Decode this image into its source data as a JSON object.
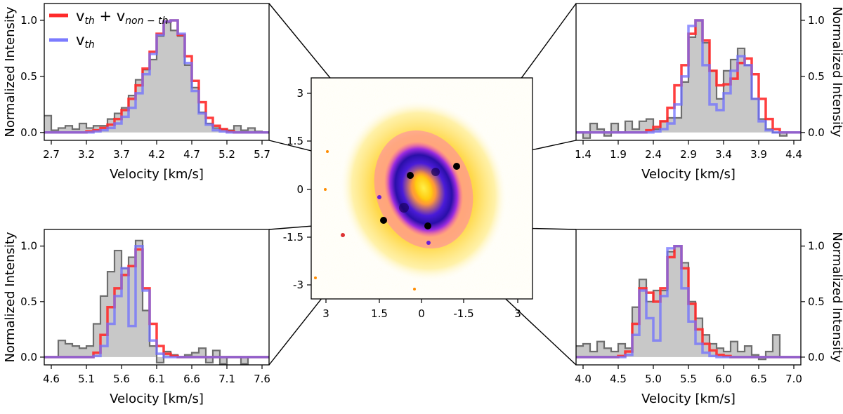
{
  "legend": {
    "entries": [
      {
        "label_main": "v",
        "label_sub": "th",
        "label_plus": " + v",
        "label_sub2": "non − th",
        "color": "#ff2a2a"
      },
      {
        "label_main": "v",
        "label_sub": "th",
        "color": "#7b7bff"
      }
    ]
  },
  "colors": {
    "observed_fill": "#c8c8c8",
    "observed_edge": "#6e6e6e",
    "thermal_nonthermal": "#ff2a2a",
    "thermal": "#7070ff",
    "overlap": "#7a1fb0"
  },
  "map": {
    "xticks": [
      "3",
      "1.5",
      "0",
      "-1.5",
      "3"
    ],
    "yticks": [
      "3",
      "1.5",
      "0",
      "-1.5",
      "-3"
    ],
    "markers": [
      "top-left",
      "top-right",
      "bottom-left",
      "bottom-right"
    ]
  },
  "chart_data": [
    {
      "type": "step",
      "panel": "top-left",
      "title": "",
      "xlabel": "Velocity [km/s]",
      "ylabel": "Normalized Intensity",
      "xlim": [
        2.6,
        5.8
      ],
      "ylim": [
        -0.07,
        1.15
      ],
      "xticks": [
        "2.7",
        "3.2",
        "3.7",
        "4.2",
        "4.7",
        "5.2",
        "5.7"
      ],
      "yticks": [
        "0.0",
        "0.5",
        "1.0"
      ],
      "bin_start": 2.6,
      "bin_width": 0.1,
      "observed": [
        0.15,
        0.02,
        0.04,
        0.06,
        0.03,
        0.08,
        0.04,
        0.06,
        0.06,
        0.12,
        0.17,
        0.22,
        0.33,
        0.47,
        0.56,
        0.65,
        0.86,
        0.98,
        0.91,
        0.86,
        0.6,
        0.4,
        0.18,
        0.08,
        0.04,
        0.03,
        0.02,
        0.06,
        0.02,
        0.04,
        0.01,
        0.0
      ],
      "series": [
        {
          "name": "vth + vnon-th",
          "values": [
            0,
            0,
            0,
            0,
            0,
            0,
            0.01,
            0.02,
            0.04,
            0.07,
            0.12,
            0.2,
            0.3,
            0.42,
            0.57,
            0.72,
            0.88,
            0.99,
            1.0,
            0.87,
            0.68,
            0.46,
            0.27,
            0.13,
            0.06,
            0.03,
            0.01,
            0,
            0,
            0,
            0,
            0
          ]
        },
        {
          "name": "vth",
          "values": [
            0,
            0,
            0,
            0,
            0,
            0,
            0,
            0.01,
            0.02,
            0.04,
            0.08,
            0.14,
            0.22,
            0.35,
            0.52,
            0.7,
            0.87,
            0.99,
            1.0,
            0.88,
            0.62,
            0.37,
            0.17,
            0.07,
            0.02,
            0.01,
            0,
            0,
            0,
            0,
            0,
            0
          ]
        }
      ]
    },
    {
      "type": "step",
      "panel": "top-right",
      "title": "",
      "xlabel": "Velocity [km/s]",
      "ylabel": "Normalized Intensity",
      "xlim": [
        1.3,
        4.5
      ],
      "ylim": [
        -0.07,
        1.15
      ],
      "xticks": [
        "1.4",
        "1.9",
        "2.4",
        "2.9",
        "3.4",
        "3.9",
        "4.4"
      ],
      "yticks": [
        "0.0",
        "0.5",
        "1.0"
      ],
      "bin_start": 1.3,
      "bin_width": 0.1,
      "observed": [
        0.0,
        -0.05,
        0.08,
        0.03,
        -0.03,
        0.08,
        0.0,
        0.1,
        0.03,
        0.1,
        0.12,
        0.03,
        0.1,
        0.13,
        0.13,
        0.45,
        0.85,
        1.0,
        0.8,
        0.55,
        0.3,
        0.55,
        0.65,
        0.75,
        0.6,
        0.3,
        0.12,
        0.03,
        0.0,
        -0.03,
        0.0,
        0.0
      ],
      "series": [
        {
          "name": "vth + vnon-th",
          "values": [
            0,
            0,
            0,
            0,
            0,
            0,
            0,
            0,
            0,
            0,
            0.02,
            0.05,
            0.1,
            0.22,
            0.42,
            0.6,
            0.88,
            1.0,
            0.82,
            0.55,
            0.42,
            0.43,
            0.48,
            0.62,
            0.66,
            0.52,
            0.3,
            0.12,
            0.03,
            0,
            0,
            0
          ]
        },
        {
          "name": "vth",
          "values": [
            0,
            0,
            0,
            0,
            0,
            0,
            0,
            0,
            0,
            0,
            0,
            0.01,
            0.03,
            0.08,
            0.25,
            0.5,
            0.95,
            1.0,
            0.6,
            0.25,
            0.2,
            0.35,
            0.55,
            0.68,
            0.6,
            0.3,
            0.1,
            0.02,
            0,
            0,
            0,
            0
          ]
        }
      ]
    },
    {
      "type": "step",
      "panel": "bottom-left",
      "title": "",
      "xlabel": "Velocity [km/s]",
      "ylabel": "Normalized Intensity",
      "xlim": [
        4.5,
        7.7
      ],
      "ylim": [
        -0.07,
        1.15
      ],
      "xticks": [
        "4.6",
        "5.1",
        "5.6",
        "6.1",
        "6.6",
        "7.1",
        "7.6"
      ],
      "yticks": [
        "0.0",
        "0.5",
        "1.0"
      ],
      "bin_start": 4.5,
      "bin_width": 0.1,
      "observed": [
        0.0,
        0.0,
        0.15,
        0.12,
        0.1,
        0.08,
        0.1,
        0.3,
        0.55,
        0.77,
        0.96,
        0.8,
        0.9,
        1.05,
        0.42,
        0.1,
        -0.05,
        0.05,
        0.02,
        0.0,
        0.02,
        0.04,
        0.08,
        -0.05,
        0.06,
        -0.06,
        0.0,
        0.0,
        -0.06,
        0.0,
        0.0,
        0.0
      ],
      "series": [
        {
          "name": "vth + vnon-th",
          "values": [
            0,
            0,
            0,
            0,
            0,
            0,
            0,
            0.04,
            0.2,
            0.45,
            0.62,
            0.74,
            0.82,
            0.97,
            0.62,
            0.3,
            0.1,
            0.03,
            0.01,
            0,
            0,
            0,
            0,
            0,
            0,
            0,
            0,
            0,
            0,
            0,
            0,
            0
          ]
        },
        {
          "name": "vth",
          "values": [
            0,
            0,
            0,
            0,
            0,
            0,
            0,
            0.01,
            0.1,
            0.3,
            0.55,
            0.8,
            0.28,
            1.0,
            0.6,
            0.15,
            0.03,
            0,
            0,
            0,
            0,
            0,
            0,
            0,
            0,
            0,
            0,
            0,
            0,
            0,
            0,
            0
          ]
        }
      ]
    },
    {
      "type": "step",
      "panel": "bottom-right",
      "title": "",
      "xlabel": "Velocity [km/s]",
      "ylabel": "Normalized Intensity",
      "xlim": [
        3.9,
        7.1
      ],
      "ylim": [
        -0.07,
        1.15
      ],
      "xticks": [
        "4.0",
        "4.5",
        "5.0",
        "5.5",
        "6.0",
        "6.5",
        "7.0"
      ],
      "yticks": [
        "0.0",
        "0.5",
        "1.0"
      ],
      "bin_start": 3.9,
      "bin_width": 0.1,
      "observed": [
        0.1,
        0.12,
        0.05,
        0.14,
        0.08,
        0.05,
        0.12,
        0.08,
        0.45,
        0.7,
        0.5,
        0.6,
        0.6,
        0.95,
        1.0,
        0.85,
        0.5,
        0.35,
        0.2,
        0.12,
        0.08,
        0.05,
        0.14,
        0.05,
        0.1,
        0.02,
        -0.02,
        0.05,
        0.2,
        0.0,
        0.0,
        0.0
      ],
      "series": [
        {
          "name": "vth + vnon-th",
          "values": [
            0,
            0,
            0,
            0,
            0,
            0,
            0.01,
            0.05,
            0.3,
            0.62,
            0.58,
            0.5,
            0.62,
            0.9,
            1.0,
            0.8,
            0.48,
            0.25,
            0.12,
            0.06,
            0.02,
            0.01,
            0,
            0,
            0,
            0,
            0,
            0,
            0,
            0,
            0,
            0
          ]
        },
        {
          "name": "vth",
          "values": [
            0,
            0,
            0,
            0,
            0,
            0,
            0,
            0.02,
            0.2,
            0.6,
            0.35,
            0.15,
            0.55,
            0.98,
            1.0,
            0.62,
            0.32,
            0.12,
            0.04,
            0.01,
            0,
            0,
            0,
            0,
            0,
            0,
            0,
            0,
            0,
            0,
            0,
            0
          ]
        }
      ]
    }
  ]
}
